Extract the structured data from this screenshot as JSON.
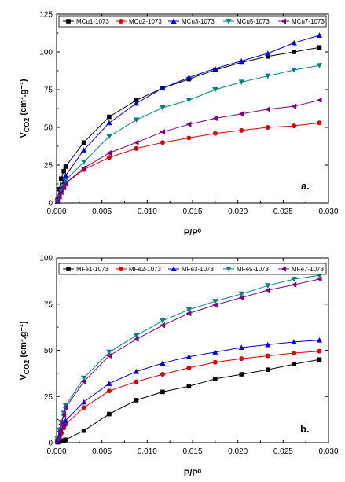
{
  "chart_data": [
    {
      "type": "line",
      "panel_label": "a.",
      "xlabel": "P/P⁰",
      "ylabel": "V_CO2 (cm³.g⁻¹)",
      "xlim": [
        0.0,
        0.03
      ],
      "ylim": [
        0,
        125
      ],
      "x_ticks": [
        0.0,
        0.005,
        0.01,
        0.015,
        0.02,
        0.025,
        0.03
      ],
      "x_tick_labels": [
        "0.000",
        "0.005",
        "0.010",
        "0.015",
        "0.020",
        "0.025",
        "0.030"
      ],
      "y_ticks": [
        0,
        25,
        50,
        75,
        100,
        125
      ],
      "y_tick_labels": [
        "0",
        "25",
        "50",
        "75",
        "100",
        "125"
      ],
      "legend_position": "top",
      "grid": false,
      "series": [
        {
          "name": "MCu1-1073",
          "color": "#000000",
          "marker": "square",
          "x": [
            0.0001,
            0.0003,
            0.0005,
            0.0008,
            0.001,
            0.003,
            0.0058,
            0.0088,
            0.0117,
            0.0146,
            0.0175,
            0.0204,
            0.0233,
            0.0262,
            0.029
          ],
          "y": [
            2,
            9,
            16,
            21,
            24,
            40,
            57,
            68,
            76,
            82,
            88,
            93,
            97,
            100,
            103
          ]
        },
        {
          "name": "MCu2-1073",
          "color": "#e00000",
          "marker": "circle",
          "x": [
            0.0001,
            0.0003,
            0.0005,
            0.0008,
            0.001,
            0.003,
            0.0058,
            0.0088,
            0.0117,
            0.0146,
            0.0175,
            0.0204,
            0.0233,
            0.0262,
            0.029
          ],
          "y": [
            1,
            4,
            7,
            10,
            13,
            22,
            30,
            36,
            40,
            43,
            46,
            48,
            50,
            51,
            53
          ]
        },
        {
          "name": "MCu3-1073",
          "color": "#0000e0",
          "marker": "triangle-up",
          "x": [
            0.0001,
            0.0003,
            0.0005,
            0.0008,
            0.001,
            0.003,
            0.0058,
            0.0088,
            0.0117,
            0.0146,
            0.0175,
            0.0204,
            0.0233,
            0.0262,
            0.029
          ],
          "y": [
            1,
            5,
            9,
            14,
            18,
            35,
            53,
            66,
            76,
            83,
            89,
            94,
            99,
            106,
            111
          ]
        },
        {
          "name": "MCu5-1073",
          "color": "#008080",
          "marker": "triangle-down",
          "x": [
            0.0001,
            0.0003,
            0.0005,
            0.0008,
            0.001,
            0.003,
            0.0058,
            0.0088,
            0.0117,
            0.0146,
            0.0175,
            0.0204,
            0.0233,
            0.0262,
            0.029
          ],
          "y": [
            1,
            4,
            8,
            11,
            15,
            27,
            44,
            55,
            63,
            68,
            75,
            80,
            84,
            88,
            91
          ]
        },
        {
          "name": "MCu7-1073",
          "color": "#800080",
          "marker": "triangle-left",
          "x": [
            0.0001,
            0.0003,
            0.0005,
            0.0008,
            0.001,
            0.003,
            0.0058,
            0.0088,
            0.0117,
            0.0146,
            0.0175,
            0.0204,
            0.0233,
            0.0262,
            0.029
          ],
          "y": [
            1,
            4,
            7,
            10,
            13,
            23,
            33,
            40,
            47,
            52,
            56,
            59,
            62,
            64,
            68
          ]
        }
      ]
    },
    {
      "type": "line",
      "panel_label": "b.",
      "xlabel": "P/P⁰",
      "ylabel": "V_CO2 (cm³.g⁻¹)",
      "xlim": [
        0.0,
        0.03
      ],
      "ylim": [
        0,
        100
      ],
      "x_ticks": [
        0.0,
        0.005,
        0.01,
        0.015,
        0.02,
        0.025,
        0.03
      ],
      "x_tick_labels": [
        "0.000",
        "0.005",
        "0.010",
        "0.015",
        "0.020",
        "0.025",
        "0.030"
      ],
      "y_ticks": [
        0,
        25,
        50,
        75,
        100
      ],
      "y_tick_labels": [
        "0",
        "25",
        "50",
        "75",
        "100"
      ],
      "legend_position": "top",
      "grid": false,
      "series": [
        {
          "name": "MFe1-1073",
          "color": "#000000",
          "marker": "square",
          "x": [
            0.0001,
            0.0003,
            0.0005,
            0.0008,
            0.001,
            0.003,
            0.0058,
            0.0088,
            0.0117,
            0.0146,
            0.0175,
            0.0204,
            0.0233,
            0.0262,
            0.029
          ],
          "y": [
            0.2,
            0.5,
            0.8,
            1.2,
            1.6,
            6.5,
            15.5,
            23,
            27.5,
            30.5,
            34.5,
            37,
            39.5,
            42.5,
            45
          ]
        },
        {
          "name": "MFe2-1073",
          "color": "#e00000",
          "marker": "circle",
          "x": [
            0.0001,
            0.0003,
            0.0005,
            0.0008,
            0.001,
            0.003,
            0.0058,
            0.0088,
            0.0117,
            0.0146,
            0.0175,
            0.0204,
            0.0233,
            0.0262,
            0.029
          ],
          "y": [
            1,
            3,
            5,
            8,
            10,
            19,
            28,
            33,
            37,
            40.5,
            43.5,
            45.5,
            47,
            48.5,
            49.5
          ]
        },
        {
          "name": "MFe3-1073",
          "color": "#0000e0",
          "marker": "triangle-up",
          "x": [
            0.0001,
            0.0003,
            0.0005,
            0.0008,
            0.001,
            0.003,
            0.0058,
            0.0088,
            0.0117,
            0.0146,
            0.0175,
            0.0204,
            0.0233,
            0.0262,
            0.029
          ],
          "y": [
            1.5,
            4,
            6.5,
            10,
            12,
            22,
            32,
            38.5,
            43,
            46.5,
            49,
            51.5,
            53,
            54.5,
            55.5
          ]
        },
        {
          "name": "MFe5-1073",
          "color": "#008080",
          "marker": "triangle-down",
          "x": [
            0.0001,
            0.0003,
            0.0005,
            0.0008,
            0.001,
            0.003,
            0.0058,
            0.0088,
            0.0117,
            0.0146,
            0.0175,
            0.0204,
            0.0233,
            0.0262,
            0.029
          ],
          "y": [
            2,
            7,
            11,
            16,
            20,
            35,
            49,
            58,
            66,
            72,
            76.5,
            80.5,
            85,
            88.5,
            90.5
          ]
        },
        {
          "name": "MFe7-1073",
          "color": "#800080",
          "marker": "triangle-left",
          "x": [
            0.0001,
            0.0003,
            0.0005,
            0.0008,
            0.001,
            0.003,
            0.0058,
            0.0088,
            0.0117,
            0.0146,
            0.0175,
            0.0204,
            0.0233,
            0.0262,
            0.029
          ],
          "y": [
            2,
            6,
            10,
            15,
            19,
            33,
            47,
            56,
            63.5,
            70,
            74.5,
            78.5,
            82.5,
            85.5,
            88.5
          ]
        }
      ]
    }
  ]
}
